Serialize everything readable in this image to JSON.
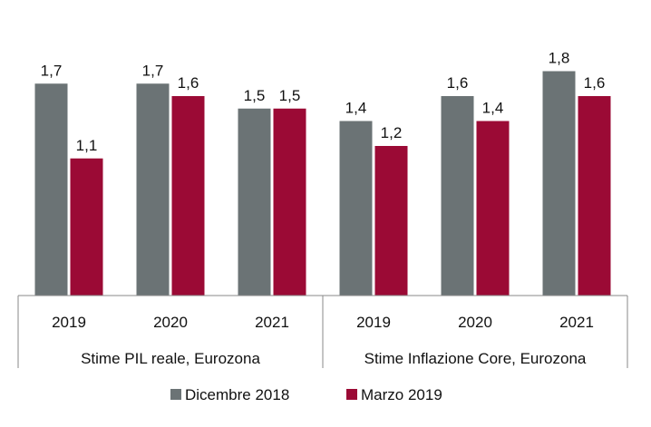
{
  "chart_data": {
    "type": "bar",
    "groups": [
      {
        "label": "Stime PIL reale, Eurozona",
        "categories": [
          "2019",
          "2020",
          "2021"
        ]
      },
      {
        "label": "Stime Inflazione Core, Eurozona",
        "categories": [
          "2019",
          "2020",
          "2021"
        ]
      }
    ],
    "series": [
      {
        "name": "Dicembre 2018",
        "color": "#6b7375",
        "values": [
          1.7,
          1.7,
          1.5,
          1.4,
          1.6,
          1.8
        ],
        "labels": [
          "1,7",
          "1,7",
          "1,5",
          "1,4",
          "1,6",
          "1,8"
        ]
      },
      {
        "name": "Marzo 2019",
        "color": "#9b0a35",
        "values": [
          1.1,
          1.6,
          1.5,
          1.2,
          1.4,
          1.6
        ],
        "labels": [
          "1,1",
          "1,6",
          "1,5",
          "1,2",
          "1,4",
          "1,6"
        ]
      }
    ],
    "ylim": [
      0,
      1.8
    ],
    "legend_position": "bottom",
    "grid": false
  }
}
